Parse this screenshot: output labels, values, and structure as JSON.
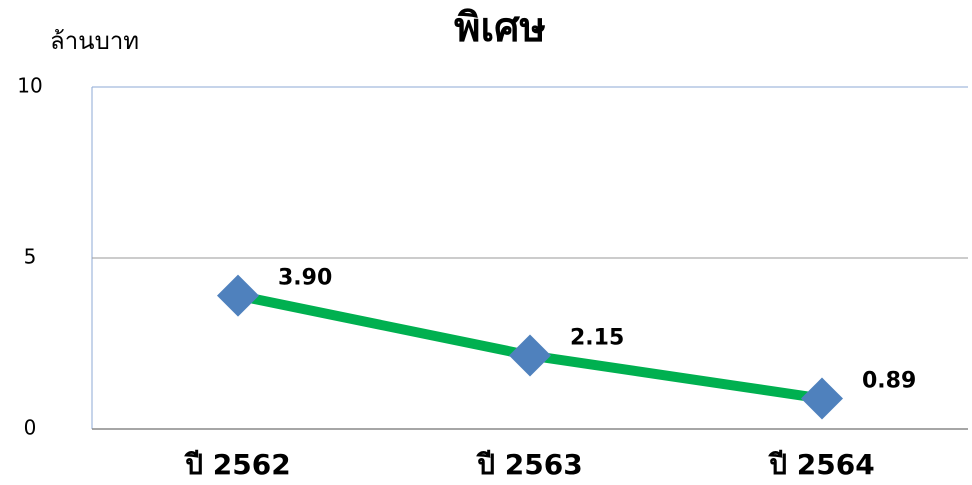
{
  "chart_data": {
    "type": "line",
    "title": "พิเศษ",
    "ylabel": "ล้านบาท",
    "categories": [
      "ปี 2562",
      "ปี 2563",
      "ปี 2564"
    ],
    "values": [
      3.9,
      2.15,
      0.89
    ],
    "value_labels": [
      "3.90",
      "2.15",
      "0.89"
    ],
    "color": "#00b050",
    "marker_color": "#4f81bd",
    "ylim": [
      0,
      10
    ],
    "yticks": [
      0,
      5,
      10
    ],
    "grid": true
  }
}
